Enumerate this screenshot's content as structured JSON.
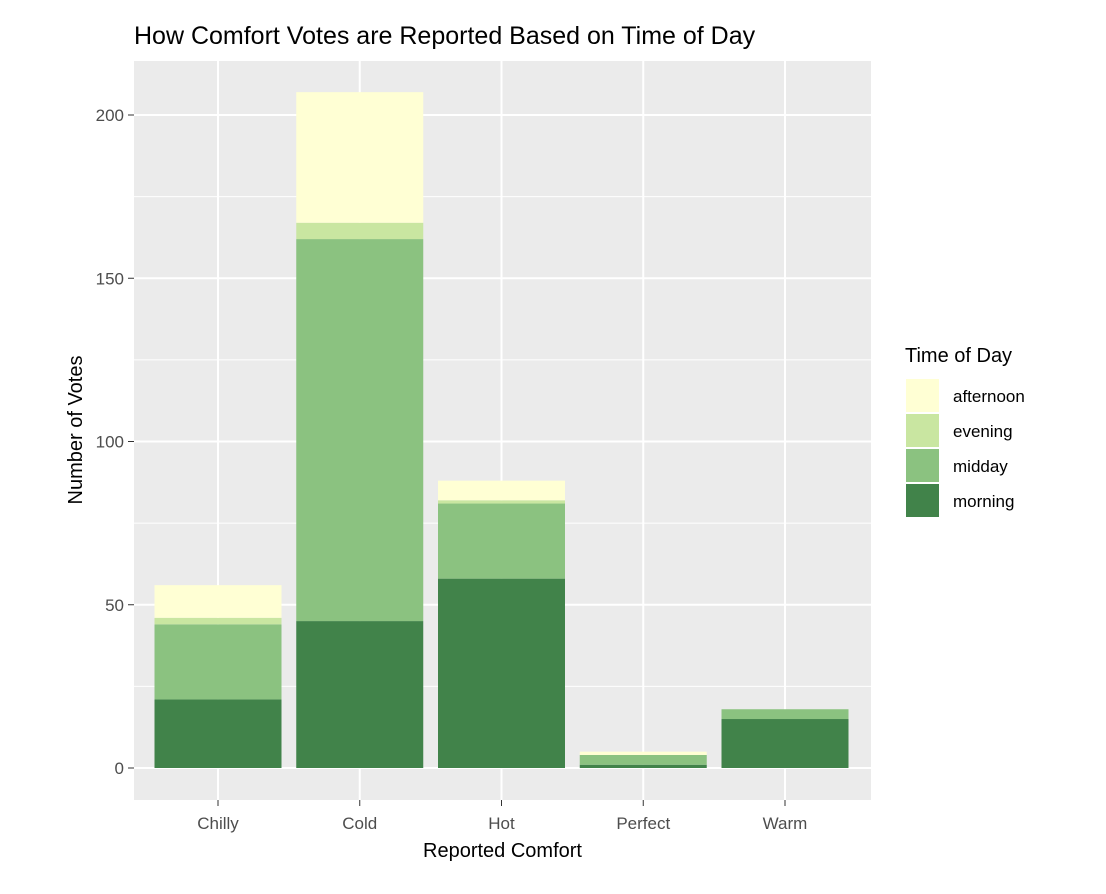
{
  "chart_data": {
    "type": "bar",
    "stacked": true,
    "title": "How Comfort Votes are Reported Based on Time of Day",
    "xlabel": "Reported Comfort",
    "ylabel": "Number of Votes",
    "categories": [
      "Chilly",
      "Cold",
      "Hot",
      "Perfect",
      "Warm"
    ],
    "ylim": [
      -8,
      215
    ],
    "yticks": [
      0,
      50,
      100,
      150,
      200
    ],
    "grid": true,
    "legend_title": "Time of Day",
    "legend_position": "right",
    "series": [
      {
        "name": "morning",
        "color": "#41834A",
        "values": [
          21,
          45,
          58,
          1,
          15
        ]
      },
      {
        "name": "midday",
        "color": "#8BC280",
        "values": [
          23,
          117,
          23,
          3,
          3
        ]
      },
      {
        "name": "evening",
        "color": "#C9E6A1",
        "values": [
          2,
          5,
          1,
          0,
          0
        ]
      },
      {
        "name": "afternoon",
        "color": "#FFFFD4",
        "values": [
          10,
          40,
          6,
          1,
          0
        ]
      }
    ],
    "legend_order": [
      "afternoon",
      "evening",
      "midday",
      "morning"
    ],
    "panel_background": "#EBEBEB",
    "grid_color": "#FFFFFF",
    "text_color": "#4D4D4D"
  }
}
